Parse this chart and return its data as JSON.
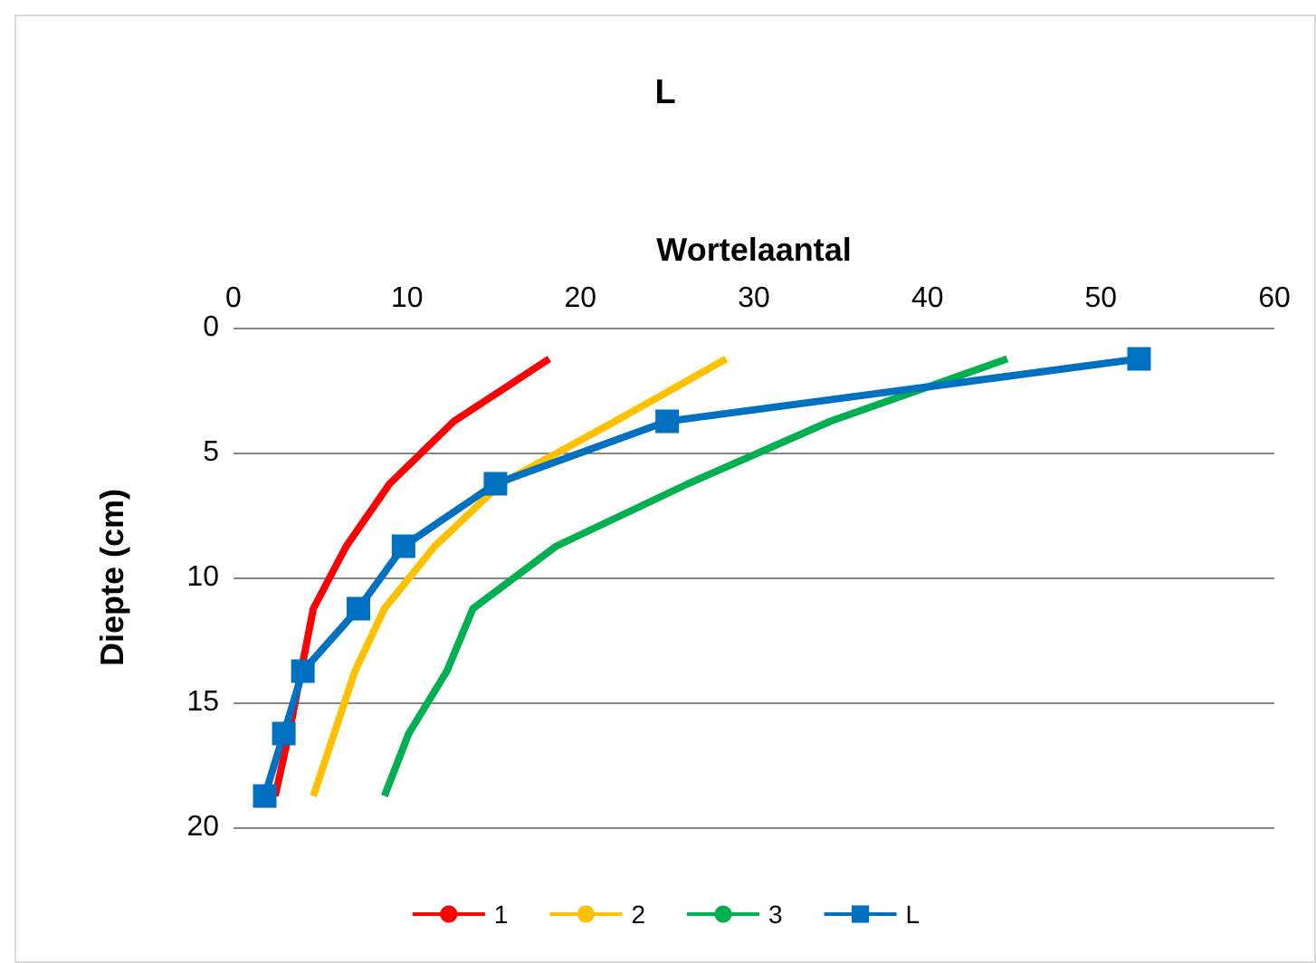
{
  "chart_data": {
    "type": "line",
    "title": "L",
    "xlabel": "Wortelaantal",
    "ylabel": "Diepte (cm)",
    "xlim": [
      0,
      60
    ],
    "xticks": [
      0,
      10,
      20,
      30,
      40,
      50,
      60
    ],
    "ylim": [
      20,
      0
    ],
    "yticks": [
      0,
      5,
      10,
      15,
      20
    ],
    "grid": "y",
    "legend": "bottom",
    "line_style": "solid",
    "series": [
      {
        "name": "1",
        "color": "#ff0000",
        "marker": "none",
        "x": [
          18.2,
          12.7,
          9.0,
          6.5,
          4.6,
          3.9,
          3.2,
          2.4
        ],
        "values": [
          1.25,
          3.75,
          6.25,
          8.75,
          11.25,
          13.75,
          16.25,
          18.75
        ]
      },
      {
        "name": "2",
        "color": "#ffc000",
        "marker": "none",
        "x": [
          28.4,
          22,
          15.4,
          11.6,
          8.7,
          7.0,
          5.8,
          4.6
        ],
        "values": [
          1.25,
          3.75,
          6.25,
          8.75,
          11.25,
          13.75,
          16.25,
          18.75
        ]
      },
      {
        "name": "3",
        "color": "#00b050",
        "marker": "none",
        "x": [
          44.6,
          34.4,
          26.2,
          18.6,
          13.8,
          12.3,
          10.1,
          8.7
        ],
        "values": [
          1.25,
          3.75,
          6.25,
          8.75,
          11.25,
          13.75,
          16.25,
          18.75
        ]
      },
      {
        "name": "L",
        "color": "#0070c0",
        "marker": "square",
        "x": [
          52.2,
          25.0,
          15.1,
          9.8,
          7.2,
          4.0,
          2.9,
          1.8
        ],
        "values": [
          1.25,
          3.75,
          6.25,
          8.75,
          11.25,
          13.75,
          16.25,
          18.75
        ]
      }
    ]
  }
}
